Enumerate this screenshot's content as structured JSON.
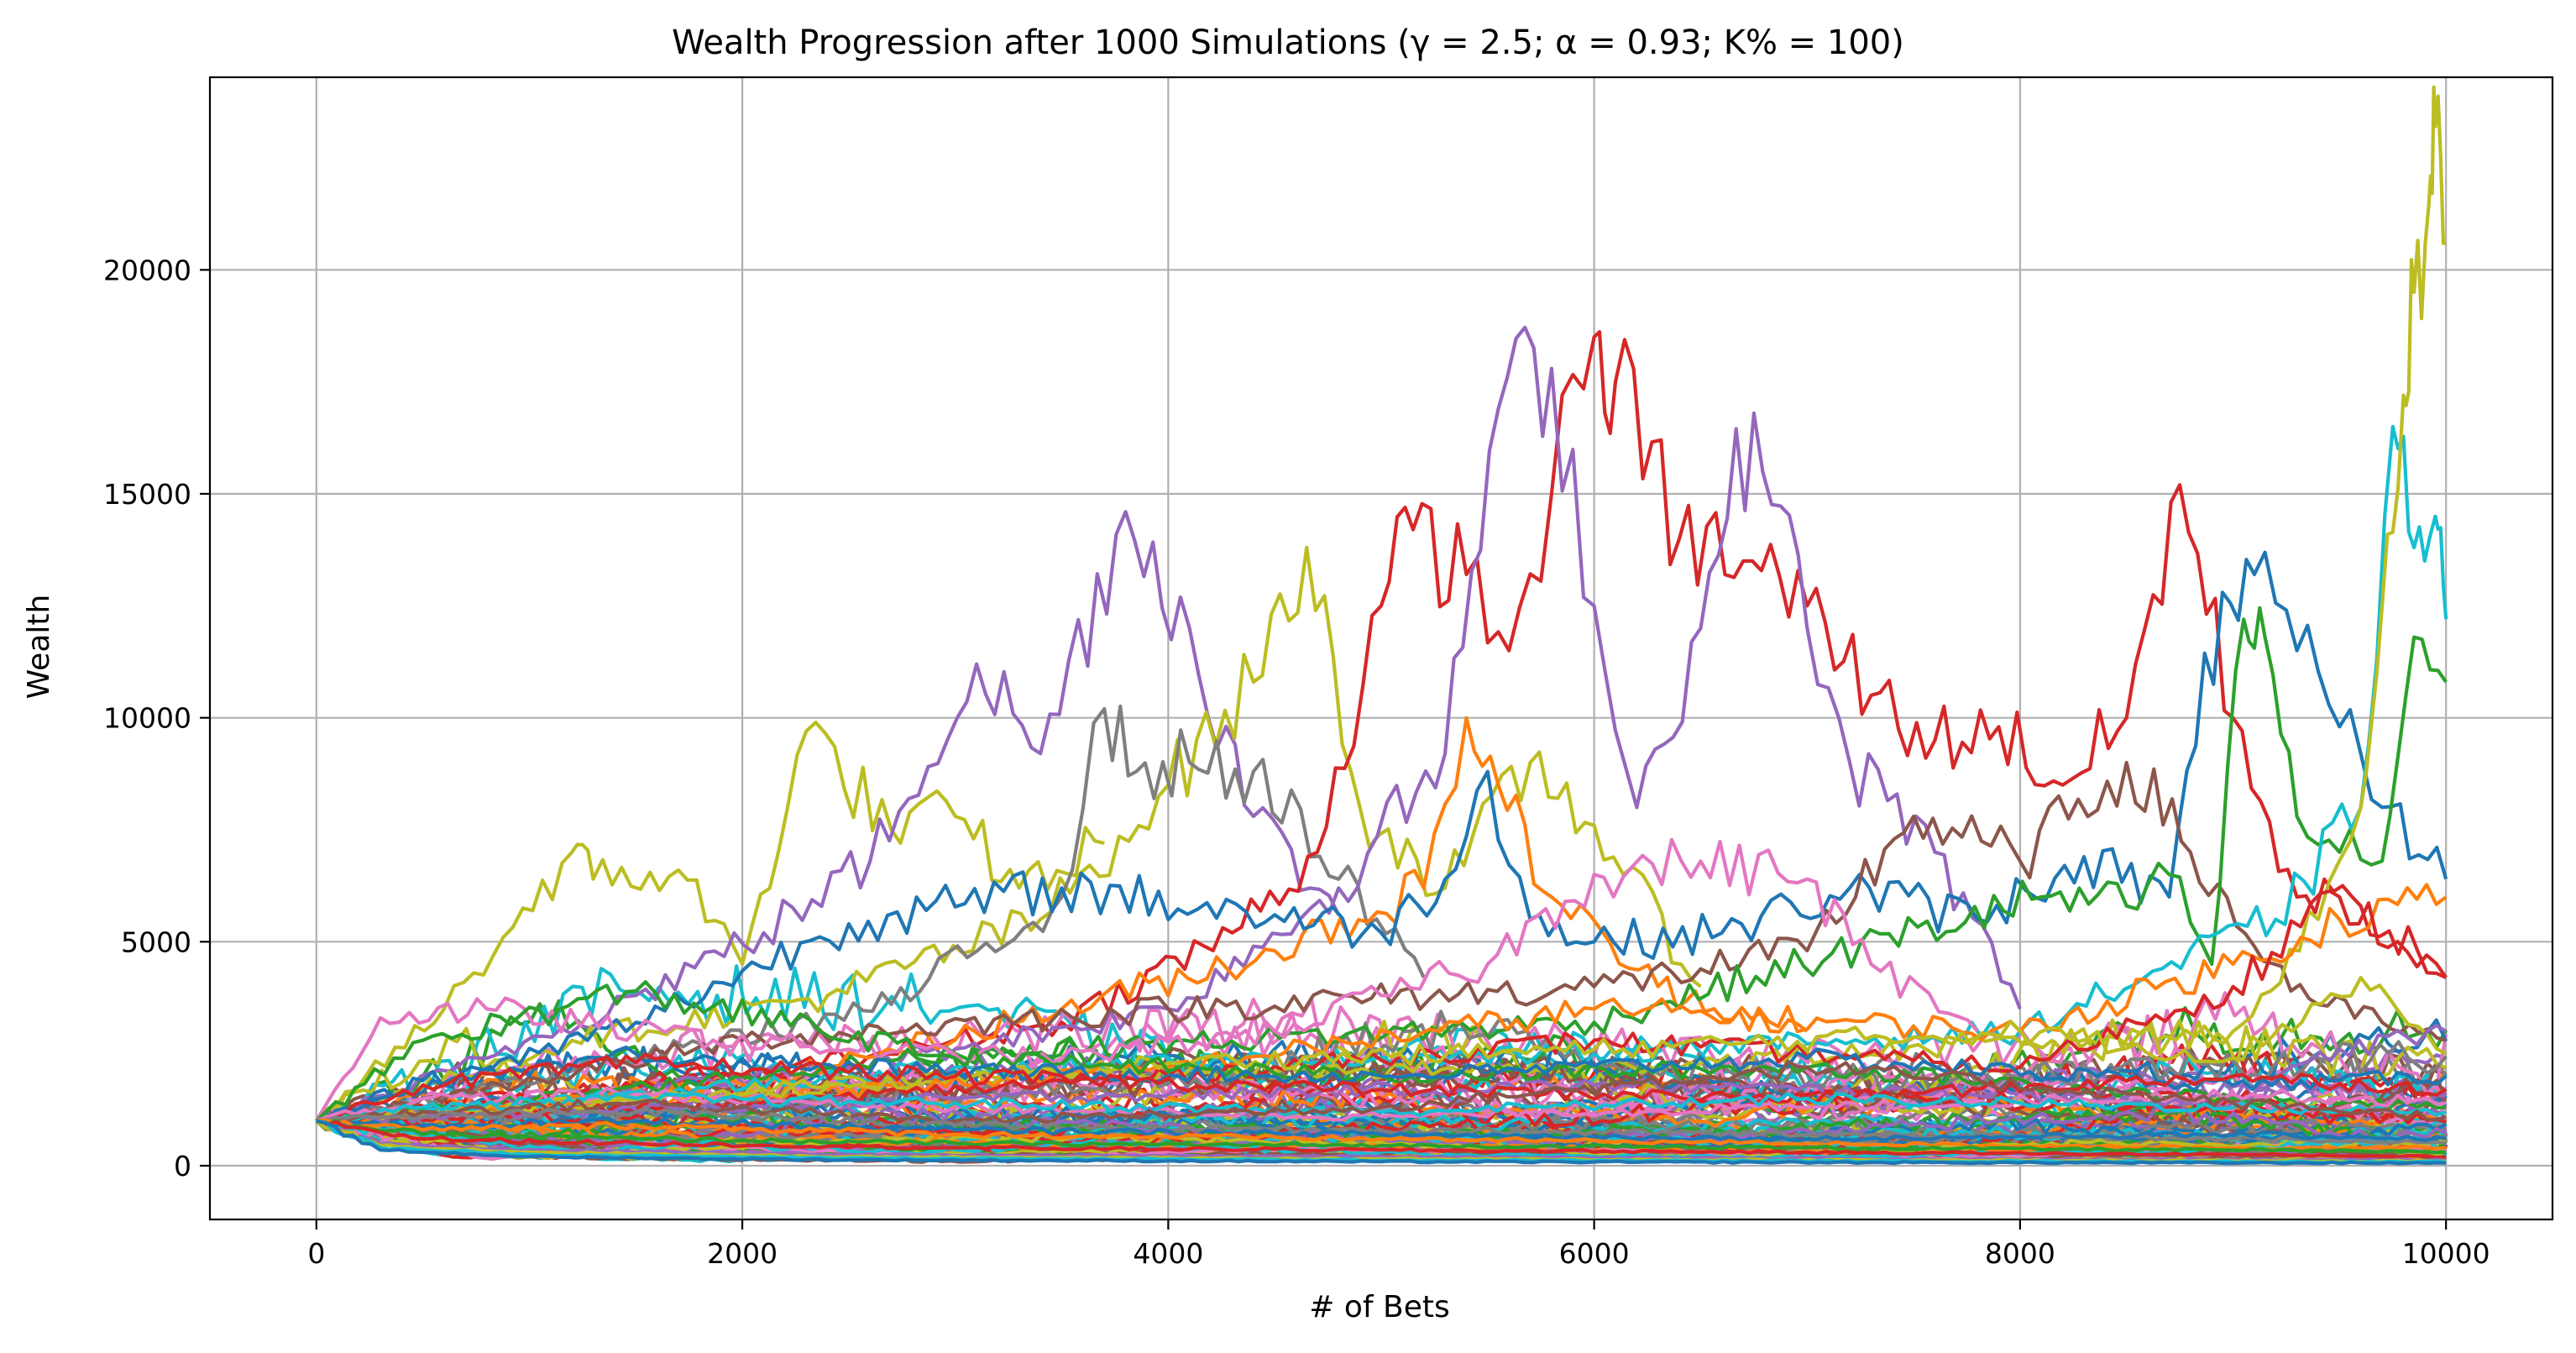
{
  "chart_data": {
    "type": "line",
    "title": "Wealth Progression after 1000 Simulations (γ = 2.5; α = 0.93; K% = 100)",
    "xlabel": "# of Bets",
    "ylabel": "Wealth",
    "xlim": [
      -500,
      10500
    ],
    "ylim": [
      -1200,
      24300
    ],
    "x_ticks": [
      0,
      2000,
      4000,
      6000,
      8000,
      10000
    ],
    "x_tick_labels": [
      "0",
      "2000",
      "4000",
      "6000",
      "8000",
      "10000"
    ],
    "y_ticks": [
      0,
      5000,
      10000,
      15000,
      20000
    ],
    "y_tick_labels": [
      "0",
      "5000",
      "10000",
      "15000",
      "20000"
    ],
    "grid": true,
    "legend": "none",
    "simulations": 1000,
    "start_wealth": 1000,
    "colors": [
      "#1f77b4",
      "#ff7f0e",
      "#2ca02c",
      "#d62728",
      "#9467bd",
      "#8c564b",
      "#e377c2",
      "#7f7f7f",
      "#bcbd22",
      "#17becf"
    ],
    "series": [
      {
        "color": "#bcbd22",
        "x": [
          0,
          600,
          1200,
          1300,
          1700,
          2000,
          2300,
          2700,
          3000,
          3300,
          3700
        ],
        "y": [
          1000,
          3500,
          7000,
          6400,
          6600,
          4500,
          9700,
          7500,
          7800,
          6200,
          7200
        ]
      },
      {
        "color": "#9467bd",
        "x": [
          0,
          800,
          1500,
          2100,
          2600,
          3100,
          3400,
          3800,
          4100,
          4400,
          4800
        ],
        "y": [
          1000,
          2400,
          3800,
          5200,
          6800,
          11200,
          9200,
          14600,
          12000,
          7800,
          5600
        ]
      },
      {
        "color": "#bcbd22",
        "x": [
          0,
          1200,
          2400,
          3400,
          4000,
          4400,
          4650,
          4900,
          5300,
          5700,
          6000,
          6500
        ],
        "y": [
          1000,
          2800,
          3800,
          5500,
          8500,
          10800,
          13800,
          8000,
          6200,
          9000,
          7600,
          4000
        ]
      },
      {
        "color": "#7f7f7f",
        "x": [
          0,
          1500,
          2700,
          3500,
          3700,
          3850,
          4100,
          4400,
          4800,
          5200
        ],
        "y": [
          1000,
          2400,
          3600,
          6000,
          10200,
          8800,
          9000,
          8800,
          6400,
          4200
        ]
      },
      {
        "color": "#d62728",
        "x": [
          0,
          2000,
          3500,
          4300,
          4700,
          5000,
          5150,
          5400,
          5600,
          5800,
          6000,
          6100,
          6400,
          6700,
          7000,
          7300,
          7600,
          7900,
          8200,
          8500,
          8750,
          9000,
          9300,
          9600,
          10000
        ],
        "y": [
          1000,
          2000,
          3200,
          5200,
          7000,
          12500,
          14200,
          13200,
          11500,
          15000,
          18500,
          17500,
          14000,
          13500,
          12500,
          10500,
          9500,
          9800,
          8500,
          10000,
          15200,
          10000,
          6000,
          5800,
          4200
        ]
      },
      {
        "color": "#9467bd",
        "x": [
          0,
          2500,
          4000,
          4800,
          5300,
          5550,
          5800,
          6000,
          6200,
          6500,
          6750,
          7000,
          7200,
          7600,
          8000
        ],
        "y": [
          1000,
          2200,
          3500,
          6200,
          9200,
          16900,
          17800,
          12500,
          8000,
          12000,
          16800,
          12000,
          9000,
          7000,
          3500
        ]
      },
      {
        "color": "#ff7f0e",
        "x": [
          0,
          2000,
          3500,
          4500,
          5200,
          5400,
          5550,
          5800,
          6300,
          7000
        ],
        "y": [
          1000,
          1800,
          3500,
          4800,
          6200,
          10000,
          8500,
          6000,
          4000,
          3000
        ]
      },
      {
        "color": "#1f77b4",
        "x": [
          0,
          1500,
          2500,
          3500,
          4500,
          5000,
          5300,
          5500,
          5700,
          6000,
          6600,
          7200,
          7800,
          8300,
          8700,
          8950,
          9100,
          9300,
          9500,
          9700,
          10000
        ],
        "y": [
          1000,
          3200,
          5400,
          6200,
          5600,
          5200,
          6400,
          8800,
          5500,
          5000,
          5200,
          6200,
          5500,
          6900,
          6000,
          12800,
          13200,
          11500,
          9800,
          8000,
          6400
        ]
      },
      {
        "color": "#8c564b",
        "x": [
          0,
          2000,
          4000,
          6000,
          7000,
          7500,
          8000,
          8500,
          8800,
          9100,
          9400,
          9700,
          10000
        ],
        "y": [
          1000,
          2800,
          3500,
          4000,
          4800,
          7800,
          6800,
          9000,
          7000,
          4900,
          3600,
          3200,
          2800
        ]
      },
      {
        "color": "#2ca02c",
        "x": [
          0,
          3000,
          6000,
          8100,
          8500,
          8700,
          8900,
          9050,
          9150,
          9300,
          9500,
          9700,
          9850,
          10000
        ],
        "y": [
          1000,
          2500,
          3200,
          6000,
          5800,
          6500,
          4500,
          12200,
          11800,
          7800,
          7000,
          6800,
          11800,
          10800
        ]
      },
      {
        "color": "#17becf",
        "x": [
          0,
          3000,
          6000,
          8000,
          9200,
          9600,
          9750,
          9850,
          9950,
          10000
        ],
        "y": [
          1000,
          2200,
          2500,
          3000,
          5500,
          8000,
          16500,
          13800,
          14500,
          12200
        ]
      },
      {
        "color": "#bcbd22",
        "x": [
          0,
          3000,
          6000,
          9000,
          9400,
          9600,
          9700,
          9800,
          9850,
          9920,
          9950,
          10000
        ],
        "y": [
          1000,
          2000,
          2200,
          3000,
          5500,
          8000,
          12500,
          17200,
          19500,
          21500,
          23200,
          20600
        ]
      },
      {
        "color": "#e377c2",
        "x": [
          0,
          300,
          800,
          1500,
          2500,
          3500,
          4500,
          5000,
          5500,
          6000,
          6500,
          7000,
          7300,
          7800
        ],
        "y": [
          1000,
          3300,
          3500,
          3000,
          2600,
          2400,
          3000,
          3800,
          4500,
          6500,
          6800,
          6400,
          4500,
          3000
        ]
      },
      {
        "color": "#ff7f0e",
        "x": [
          0,
          2000,
          4000,
          6000,
          8000,
          9000,
          9500,
          10000
        ],
        "y": [
          1000,
          1500,
          2200,
          3500,
          3000,
          4500,
          5500,
          6000
        ]
      },
      {
        "color": "#d62728",
        "x": [
          0,
          2000,
          4000,
          6000,
          8000,
          9000,
          9500,
          10000
        ],
        "y": [
          1000,
          1400,
          2000,
          2800,
          2200,
          4000,
          6000,
          4200
        ]
      },
      {
        "color": "#bcbd22",
        "x": [
          0,
          2000,
          4000,
          6000,
          8000,
          9000,
          9600,
          10000
        ],
        "y": [
          1000,
          1600,
          2300,
          2600,
          3000,
          2400,
          4200,
          2500
        ]
      },
      {
        "color": "#9467bd",
        "x": [
          0,
          3000,
          6000,
          8000,
          9000,
          9500,
          10000
        ],
        "y": [
          1000,
          1500,
          1800,
          1600,
          1400,
          2600,
          3000
        ]
      },
      {
        "color": "#2ca02c",
        "x": [
          0,
          500,
          1500,
          3000,
          5000,
          7000,
          9000,
          10000
        ],
        "y": [
          1000,
          2800,
          3900,
          2400,
          2000,
          2200,
          1500,
          1300
        ]
      },
      {
        "color": "#1f77b4",
        "x": [
          0,
          500,
          1500,
          3000,
          5000,
          7000,
          9000,
          10000
        ],
        "y": [
          1000,
          1900,
          2500,
          2100,
          2000,
          2400,
          1800,
          2000
        ]
      },
      {
        "color": "#d62728",
        "x": [
          0,
          500,
          1500,
          3000,
          5000,
          7000,
          9000,
          10000
        ],
        "y": [
          1000,
          1800,
          2300,
          2000,
          1700,
          1500,
          2000,
          1700
        ]
      },
      {
        "color": "#e377c2",
        "x": [
          0,
          500,
          1500,
          3000,
          5000,
          7000,
          9000,
          10000
        ],
        "y": [
          1000,
          1500,
          1600,
          1300,
          1100,
          1300,
          1600,
          1400
        ]
      },
      {
        "color": "#17becf",
        "x": [
          0,
          500,
          1500,
          3000,
          5000,
          7000,
          9000,
          10000
        ],
        "y": [
          1000,
          1300,
          1500,
          1400,
          1200,
          1500,
          1300,
          1200
        ]
      },
      {
        "color": "#8c564b",
        "x": [
          0,
          500,
          1500,
          3000,
          5000,
          7000,
          9000,
          10000
        ],
        "y": [
          1000,
          1200,
          1400,
          1000,
          1300,
          2200,
          1400,
          1100
        ]
      },
      {
        "color": "#7f7f7f",
        "x": [
          0,
          500,
          1500,
          3000,
          5000,
          7000,
          9000,
          10000
        ],
        "y": [
          1000,
          1100,
          1200,
          900,
          800,
          700,
          600,
          500
        ]
      },
      {
        "color": "#1f77b4",
        "x": [
          0,
          500,
          1500,
          3000,
          5000,
          7000,
          9000,
          10000
        ],
        "y": [
          1000,
          900,
          1000,
          800,
          700,
          600,
          700,
          600
        ]
      },
      {
        "color": "#ff7f0e",
        "x": [
          0,
          500,
          1500,
          3000,
          5000,
          7000,
          9000,
          10000
        ],
        "y": [
          1000,
          800,
          900,
          700,
          600,
          500,
          400,
          400
        ]
      },
      {
        "color": "#2ca02c",
        "x": [
          0,
          500,
          1500,
          3000,
          5000,
          7000,
          9000,
          10000
        ],
        "y": [
          1000,
          700,
          600,
          500,
          450,
          400,
          350,
          300
        ]
      },
      {
        "color": "#d62728",
        "x": [
          0,
          500,
          1500,
          3000,
          5000,
          7000,
          9000,
          10000
        ],
        "y": [
          1000,
          600,
          500,
          400,
          350,
          300,
          250,
          200
        ]
      },
      {
        "color": "#9467bd",
        "x": [
          0,
          300,
          1000,
          2500,
          5000,
          7500,
          10000
        ],
        "y": [
          1000,
          500,
          350,
          250,
          200,
          150,
          120
        ]
      },
      {
        "color": "#bcbd22",
        "x": [
          0,
          300,
          1000,
          2500,
          5000,
          7500,
          10000
        ],
        "y": [
          1000,
          450,
          300,
          200,
          150,
          120,
          100
        ]
      },
      {
        "color": "#17becf",
        "x": [
          0,
          300,
          1000,
          2500,
          5000,
          7500,
          10000
        ],
        "y": [
          1000,
          400,
          250,
          170,
          120,
          100,
          80
        ]
      },
      {
        "color": "#1f77b4",
        "x": [
          0,
          300,
          1000,
          2500,
          5000,
          7500,
          10000
        ],
        "y": [
          1000,
          350,
          200,
          130,
          90,
          70,
          60
        ]
      }
    ]
  }
}
